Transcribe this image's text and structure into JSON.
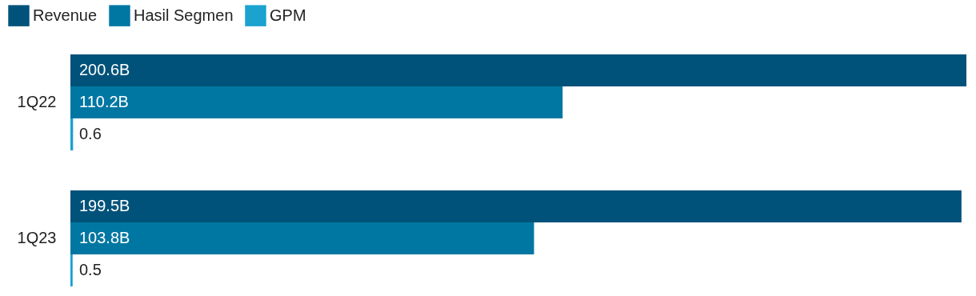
{
  "chart_data": {
    "type": "bar",
    "orientation": "horizontal",
    "categories": [
      "1Q22",
      "1Q23"
    ],
    "series": [
      {
        "name": "Revenue",
        "color": "#01527a",
        "values": [
          200.6,
          199.5
        ],
        "value_labels": [
          "200.6B",
          "199.5B"
        ]
      },
      {
        "name": "Hasil Segmen",
        "color": "#0077a2",
        "values": [
          110.2,
          103.8
        ],
        "value_labels": [
          "110.2B",
          "103.8B"
        ]
      },
      {
        "name": "GPM",
        "color": "#1ba2cf",
        "values": [
          0.6,
          0.5
        ],
        "value_labels": [
          "0.6",
          "0.5"
        ]
      }
    ],
    "legend": "top left",
    "grid": false
  }
}
